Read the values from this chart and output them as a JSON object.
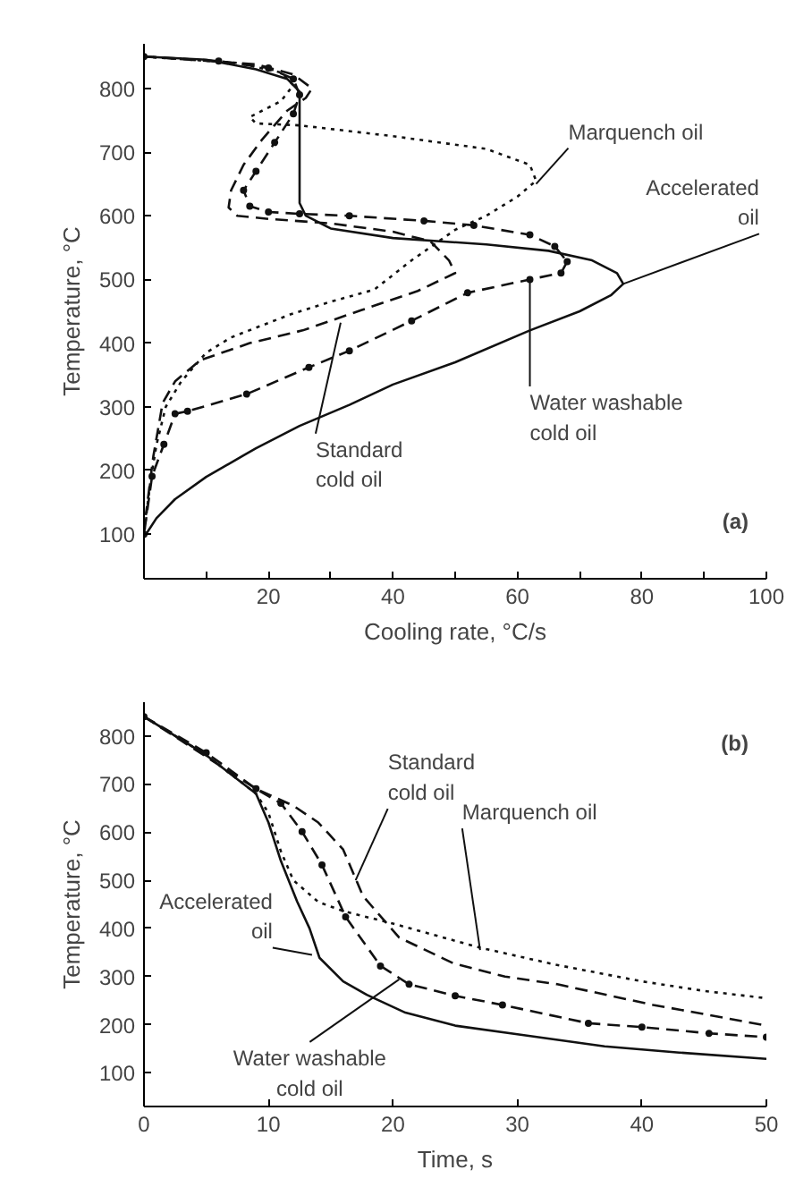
{
  "chart_data": [
    {
      "type": "line",
      "xlabel": "Cooling rate, °C/s",
      "ylabel": "Temperature, °C",
      "xlim": [
        0,
        100
      ],
      "ylim": [
        30,
        870
      ],
      "xticks": [
        {
          "value": 10,
          "label": null
        },
        20,
        {
          "value": 30,
          "label": null
        },
        40,
        {
          "value": 50,
          "label": null
        },
        60,
        {
          "value": 70,
          "label": null
        },
        80,
        {
          "value": 90,
          "label": null
        },
        100
      ],
      "yticks": [
        100,
        200,
        300,
        400,
        500,
        600,
        700,
        800
      ],
      "grid": false,
      "series": [
        {
          "color": "#111111",
          "line_style": "solid",
          "x": [
            0,
            10,
            18,
            23,
            25,
            25,
            25,
            25,
            26,
            30,
            40,
            55,
            65,
            72,
            76,
            77,
            75,
            70,
            62,
            50,
            40,
            33,
            25,
            18,
            10,
            5,
            2,
            0
          ],
          "values": [
            850,
            845,
            830,
            815,
            795,
            770,
            700,
            620,
            600,
            580,
            565,
            555,
            545,
            530,
            510,
            493,
            475,
            450,
            420,
            370,
            335,
            303,
            270,
            235,
            190,
            155,
            125,
            95
          ]
        },
        {
          "color": "#111111",
          "line_style": "dotted",
          "x": [
            0,
            15,
            22,
            24,
            22,
            17,
            18,
            25,
            40,
            55,
            62,
            63,
            60,
            55,
            50,
            43,
            37,
            30,
            23.5,
            14,
            10,
            6,
            3.5,
            2,
            1,
            0
          ],
          "values": [
            850,
            840,
            825,
            805,
            780,
            755,
            745,
            742,
            725,
            705,
            680,
            655,
            630,
            600,
            578,
            530,
            484,
            465,
            445,
            409,
            385,
            340,
            300,
            240,
            180,
            100
          ]
        },
        {
          "color": "#111111",
          "line_style": "dashed",
          "x": [
            0,
            18,
            24,
            27,
            26,
            23,
            19,
            16,
            14,
            13.6,
            15,
            20,
            30,
            40,
            46,
            49,
            50,
            44,
            35,
            25.5,
            17,
            9,
            5,
            3,
            1.5,
            0.3
          ],
          "values": [
            850,
            838,
            822,
            800,
            785,
            765,
            720,
            680,
            640,
            613,
            600,
            595,
            588,
            575,
            560,
            530,
            510,
            482,
            452,
            420,
            400,
            373,
            340,
            306,
            222,
            130
          ]
        },
        {
          "color": "#111111",
          "line_style": "dashed",
          "marker": "circle",
          "x": [
            0,
            12,
            20,
            24,
            25,
            24,
            21,
            18,
            16,
            17,
            20,
            25,
            33,
            45,
            53,
            62,
            66,
            68,
            67,
            62,
            52,
            43,
            33,
            26.5,
            16.5,
            7,
            5,
            3.2,
            1.3,
            0
          ],
          "values": [
            850,
            843,
            832,
            815,
            790,
            760,
            715,
            670,
            640,
            615,
            606,
            603,
            600,
            592,
            585,
            570,
            552,
            528,
            510,
            500,
            479,
            435,
            388,
            362,
            320,
            293,
            289,
            241,
            191,
            100
          ]
        }
      ],
      "annotations": [
        {
          "text": "Marquench oil",
          "x": 63,
          "y": 650
        },
        {
          "text": "Accelerated\noil",
          "x": 77,
          "y": 493
        },
        {
          "text": "Water washable\ncold oil",
          "x": 62,
          "y": 495
        },
        {
          "text": "Standard\ncold oil",
          "x": 31.6,
          "y": 432
        },
        "(a)"
      ]
    },
    {
      "type": "line",
      "xlabel": "Time, s",
      "ylabel": "Temperature, °C",
      "xlim": [
        0,
        50
      ],
      "ylim": [
        30,
        870
      ],
      "xticks": [
        0,
        10,
        20,
        30,
        40,
        50
      ],
      "yticks": [
        100,
        200,
        300,
        400,
        500,
        600,
        700,
        800
      ],
      "grid": false,
      "series": [
        {
          "color": "#111111",
          "line_style": "solid",
          "x": [
            0,
            5,
            9,
            10,
            11,
            12.3,
            13.3,
            14.1,
            16,
            17.9,
            21,
            25,
            30,
            37,
            43,
            50
          ],
          "values": [
            840,
            760,
            680,
            620,
            540,
            456,
            400,
            339,
            290,
            262,
            225,
            198,
            180,
            155,
            142,
            129
          ]
        },
        {
          "color": "#111111",
          "line_style": "dotted",
          "x": [
            0,
            5,
            9,
            10,
            11,
            12,
            14,
            16,
            20,
            27,
            33,
            40,
            45,
            50
          ],
          "values": [
            840,
            760,
            680,
            640,
            560,
            500,
            455,
            436,
            410,
            360,
            325,
            290,
            270,
            255
          ]
        },
        {
          "color": "#111111",
          "line_style": "dashed",
          "x": [
            0,
            9,
            12,
            14,
            16,
            17.6,
            20.5,
            24.9,
            29,
            33.2,
            40.9,
            45,
            50
          ],
          "values": [
            840,
            690,
            655,
            620,
            564,
            467,
            381,
            327,
            300,
            284,
            241,
            222,
            198
          ]
        },
        {
          "color": "#111111",
          "line_style": "dashed",
          "marker": "circle",
          "x": [
            0,
            5,
            9,
            11,
            12.7,
            14.3,
            16.2,
            19,
            21.3,
            25,
            28.8,
            35.7,
            40,
            45.4,
            50
          ],
          "values": [
            840,
            765,
            690,
            660,
            601,
            532,
            424,
            322,
            284,
            260,
            241,
            203,
            195,
            182,
            174
          ]
        }
      ],
      "annotations": [
        {
          "text": "Standard\ncold oil",
          "x": 17,
          "y": 500
        },
        {
          "text": "Marquench oil",
          "x": 27,
          "y": 355
        },
        {
          "text": "Accelerated\noil",
          "x": 13.5,
          "y": 345
        },
        {
          "text": "Water washable\ncold oil",
          "x": 20.5,
          "y": 294
        },
        "(b)"
      ]
    }
  ]
}
